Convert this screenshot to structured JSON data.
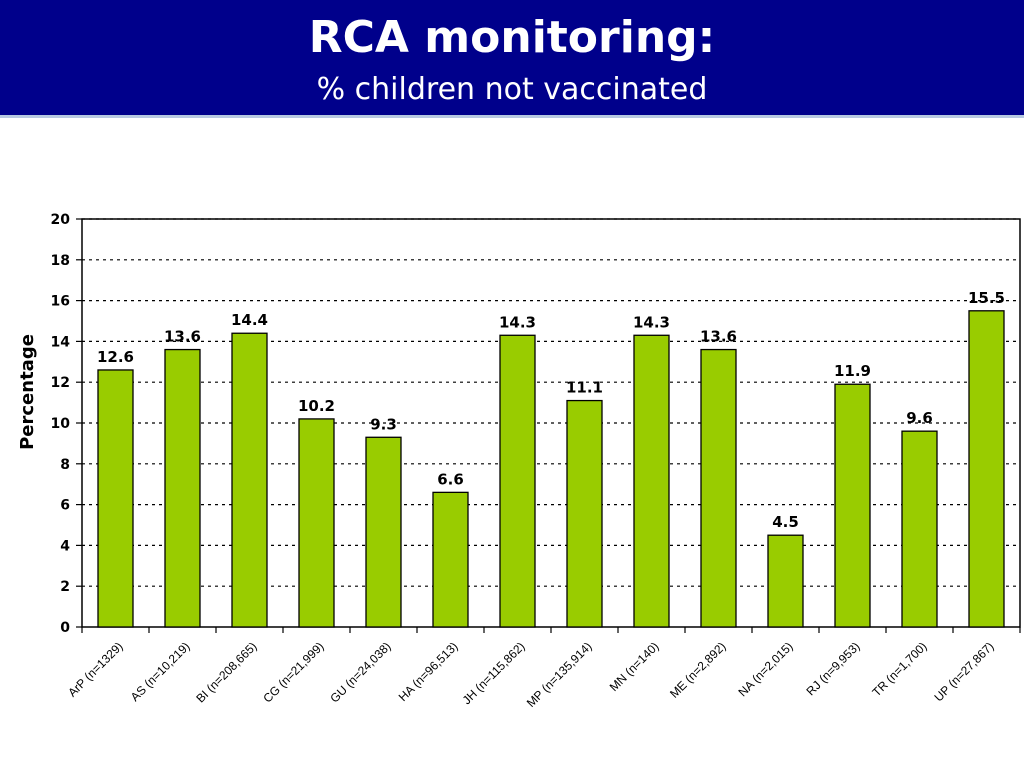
{
  "header": {
    "title": "RCA monitoring:",
    "subtitle": "% children not vaccinated",
    "background": "#00008b"
  },
  "chart_data": {
    "type": "bar",
    "title": "",
    "xlabel": "",
    "ylabel": "Percentage",
    "ylim": [
      0,
      20
    ],
    "yticks": [
      0,
      2,
      4,
      6,
      8,
      10,
      12,
      14,
      16,
      18,
      20
    ],
    "grid": true,
    "bar_color": "#99cc00",
    "categories": [
      "ArP (n=1329)",
      "AS (n=10,219)",
      "BI (n=208,665)",
      "CG (n=21,999)",
      "GU (n=24,038)",
      "HA (n=96,513)",
      "JH (n=115,862)",
      "MP (n=135,914)",
      "MN   (n=140)",
      "ME (n=2,892)",
      "NA (n=2,015)",
      "RJ (n=9,953)",
      "TR   (n=1,700)",
      "UP (n=27,867)"
    ],
    "values": [
      12.6,
      13.6,
      14.4,
      10.2,
      9.3,
      6.6,
      14.3,
      11.1,
      14.3,
      13.6,
      4.5,
      11.9,
      9.6,
      15.5
    ],
    "data_labels": [
      "12.6",
      "13.6",
      "14.4",
      "10.2",
      "9.3",
      "6.6",
      "14.3",
      "11.1",
      "14.3",
      "13.6",
      "4.5",
      "11.9",
      "9.6",
      "15.5"
    ]
  }
}
